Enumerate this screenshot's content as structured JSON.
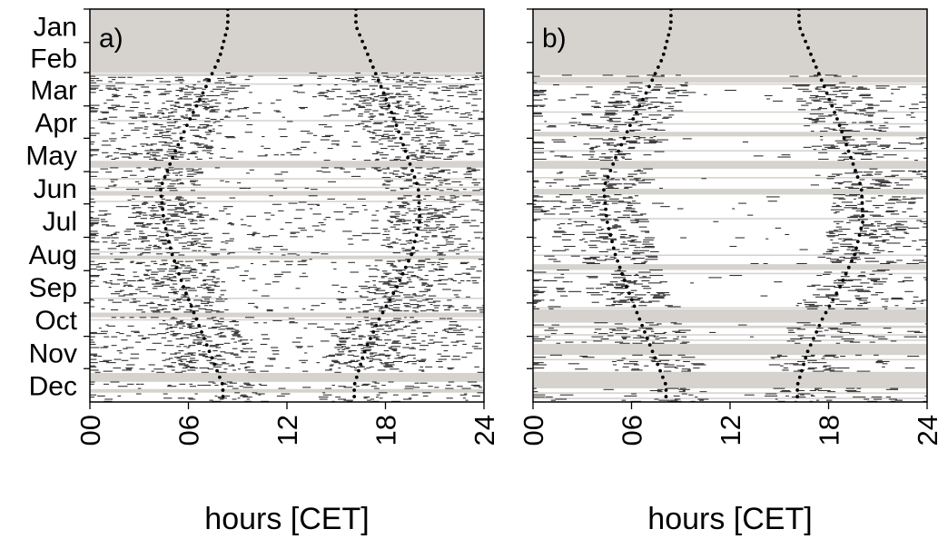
{
  "chart_data": [
    {
      "type": "heatmap",
      "panel_label": "a)",
      "xlabel": "hours [CET]",
      "ylabel": "",
      "xlim": [
        0,
        24
      ],
      "x_ticks": [
        "00",
        "06",
        "12",
        "18",
        "24"
      ],
      "y_ticks": [
        "Jan",
        "Feb",
        "Mar",
        "Apr",
        "May",
        "Jun",
        "Jul",
        "Aug",
        "Sep",
        "Oct",
        "Nov",
        "Dec"
      ],
      "ylim": [
        1,
        365
      ],
      "no_data_day_ranges": [
        [
          1,
          59
        ],
        [
          142,
          147
        ]
      ],
      "light_day_ranges": [
        [
          61,
          62
        ],
        [
          171,
          173
        ],
        [
          230,
          232
        ],
        [
          283,
          286
        ],
        [
          339,
          346
        ],
        [
          354,
          356
        ]
      ],
      "sunrise_hours": {
        "Jan": 8.4,
        "Feb": 7.9,
        "Mar": 7.0,
        "Apr": 6.0,
        "May": 5.1,
        "Jun": 4.3,
        "Jul": 4.5,
        "Aug": 5.0,
        "Sep": 5.7,
        "Oct": 6.5,
        "Nov": 7.3,
        "Dec": 8.1
      },
      "sunset_hours": {
        "Jan": 16.2,
        "Feb": 17.0,
        "Mar": 17.8,
        "Apr": 18.6,
        "May": 19.3,
        "Jun": 20.0,
        "Jul": 20.1,
        "Aug": 19.6,
        "Sep": 18.7,
        "Oct": 17.6,
        "Nov": 16.7,
        "Dec": 16.1
      },
      "colors": {
        "no_data": "#d6d3cf",
        "active": "#2e2e2e",
        "inactive": "#ffffff"
      }
    },
    {
      "type": "heatmap",
      "panel_label": "b)",
      "xlabel": "hours [CET]",
      "ylabel": "",
      "xlim": [
        0,
        24
      ],
      "x_ticks": [
        "00",
        "06",
        "12",
        "18",
        "24"
      ],
      "ylim": [
        1,
        365
      ],
      "no_data_day_ranges": [
        [
          1,
          61
        ],
        [
          142,
          148
        ]
      ],
      "light_day_ranges": [
        [
          64,
          68
        ],
        [
          115,
          118
        ],
        [
          168,
          172
        ],
        [
          238,
          242
        ],
        [
          280,
          290
        ],
        [
          312,
          320
        ],
        [
          338,
          352
        ]
      ],
      "sunrise_hours": {
        "Jan": 8.4,
        "Feb": 7.9,
        "Mar": 7.0,
        "Apr": 6.0,
        "May": 5.1,
        "Jun": 4.3,
        "Jul": 4.5,
        "Aug": 5.0,
        "Sep": 5.7,
        "Oct": 6.5,
        "Nov": 7.3,
        "Dec": 8.1
      },
      "sunset_hours": {
        "Jan": 16.2,
        "Feb": 17.0,
        "Mar": 17.8,
        "Apr": 18.6,
        "May": 19.3,
        "Jun": 20.0,
        "Jul": 20.1,
        "Aug": 19.6,
        "Sep": 18.7,
        "Oct": 17.6,
        "Nov": 16.7,
        "Dec": 16.1
      },
      "colors": {
        "no_data": "#d6d3cf",
        "active": "#2e2e2e",
        "inactive": "#ffffff"
      }
    }
  ]
}
